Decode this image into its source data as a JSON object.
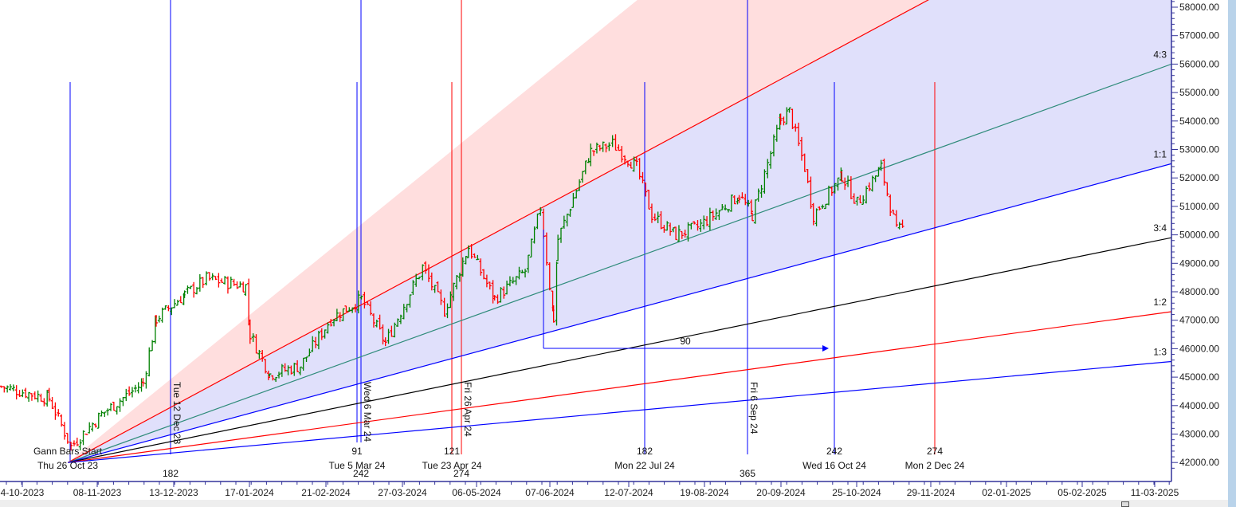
{
  "chart_data": {
    "type": "candlestick",
    "title": "",
    "ylim": [
      41600,
      58300
    ],
    "y_ticks": [
      "42000.00",
      "43000.00",
      "44000.00",
      "45000.00",
      "46000.00",
      "47000.00",
      "48000.00",
      "49000.00",
      "50000.00",
      "51000.00",
      "52000.00",
      "53000.00",
      "54000.00",
      "55000.00",
      "56000.00",
      "57000.00",
      "58000.00"
    ],
    "x_ticks": [
      "4-10-2023",
      "08-11-2023",
      "13-12-2023",
      "17-01-2024",
      "21-02-2024",
      "27-03-2024",
      "06-05-2024",
      "07-06-2024",
      "12-07-2024",
      "19-08-2024",
      "20-09-2024",
      "25-10-2024",
      "29-11-2024",
      "02-01-2025",
      "05-02-2025",
      "11-03-2025"
    ],
    "grid": false,
    "colors": {
      "up": "#008000",
      "down": "#ff0000",
      "fan_zone_upper": "#ffdede",
      "fan_zone_lower": "#e0e0fb"
    },
    "price_path": [
      [
        "2023-09-25",
        44670
      ],
      [
        "2023-10-17",
        44250
      ],
      [
        "2023-10-27",
        42560
      ],
      [
        "2023-11-10",
        43700
      ],
      [
        "2023-11-29",
        44800
      ],
      [
        "2023-12-05",
        47050
      ],
      [
        "2023-12-18",
        47900
      ],
      [
        "2023-12-28",
        48450
      ],
      [
        "2024-01-15",
        48200
      ],
      [
        "2024-01-17",
        46500
      ],
      [
        "2024-01-26",
        45100
      ],
      [
        "2024-02-09",
        45400
      ],
      [
        "2024-02-23",
        47050
      ],
      [
        "2024-03-08",
        47750
      ],
      [
        "2024-03-19",
        46200
      ],
      [
        "2024-04-05",
        48870
      ],
      [
        "2024-04-15",
        47330
      ],
      [
        "2024-04-26",
        49570
      ],
      [
        "2024-05-08",
        47750
      ],
      [
        "2024-05-22",
        48730
      ],
      [
        "2024-05-29",
        50970
      ],
      [
        "2024-06-04",
        47050
      ],
      [
        "2024-06-06",
        49850
      ],
      [
        "2024-06-21",
        52930
      ],
      [
        "2024-07-01",
        53200
      ],
      [
        "2024-07-12",
        52370
      ],
      [
        "2024-07-19",
        50690
      ],
      [
        "2024-07-30",
        49990
      ],
      [
        "2024-08-09",
        50270
      ],
      [
        "2024-08-28",
        51390
      ],
      [
        "2024-09-03",
        50690
      ],
      [
        "2024-09-16",
        54050
      ],
      [
        "2024-09-20",
        54330
      ],
      [
        "2024-09-27",
        52370
      ],
      [
        "2024-10-01",
        50690
      ],
      [
        "2024-10-14",
        52090
      ],
      [
        "2024-10-21",
        51110
      ],
      [
        "2024-11-01",
        52370
      ],
      [
        "2024-11-08",
        50130
      ],
      [
        "2024-11-12",
        50270
      ]
    ],
    "gann_fan": {
      "start_label": "Gann Bars Start",
      "start_date_label": "Thu 26 Oct 23",
      "origin": [
        "2023-10-26",
        42000
      ],
      "lines": [
        {
          "ratio": "",
          "end_value": 73500,
          "color": "#ff0000",
          "visible": false
        },
        {
          "ratio": "",
          "end_value": 62850,
          "color": "#ff0000"
        },
        {
          "ratio": "4:3",
          "end_value": 56000,
          "color": "#2e8b7a"
        },
        {
          "ratio": "1:1",
          "end_value": 52500,
          "color": "#0000ff"
        },
        {
          "ratio": "3:4",
          "end_value": 49900,
          "color": "#000000"
        },
        {
          "ratio": "1:2",
          "end_value": 47300,
          "color": "#ff0000"
        },
        {
          "ratio": "1:3",
          "end_value": 45550,
          "color": "#0000ff"
        }
      ]
    },
    "gann_bars": [
      {
        "count": "91",
        "date": "Tue 5 Mar 24",
        "color": "#0000ff"
      },
      {
        "count": "121",
        "date": "Tue 23 Apr 24",
        "color": "#ff0000"
      },
      {
        "count": "182",
        "date": "Mon 22 Jul 24",
        "color": "#0000ff"
      },
      {
        "count": "242",
        "date": "Wed 16 Oct 24",
        "color": "#0000ff"
      },
      {
        "count": "274",
        "date": "Mon 2 Dec 24",
        "color": "#ff0000"
      }
    ],
    "calendar_bars": [
      {
        "count": "182",
        "date": "Tue 12 Dec 23",
        "color": "#0000ff"
      },
      {
        "count": "242",
        "date": "Wed 6 Mar 24",
        "color": "#0000ff"
      },
      {
        "count": "274",
        "date": "Fri 26 Apr 24",
        "color": "#ff0000"
      },
      {
        "count": "365",
        "date": "Fri 6 Sep 24",
        "color": "#0000ff"
      }
    ],
    "measure": {
      "label": "90",
      "color": "#0000ff"
    }
  }
}
